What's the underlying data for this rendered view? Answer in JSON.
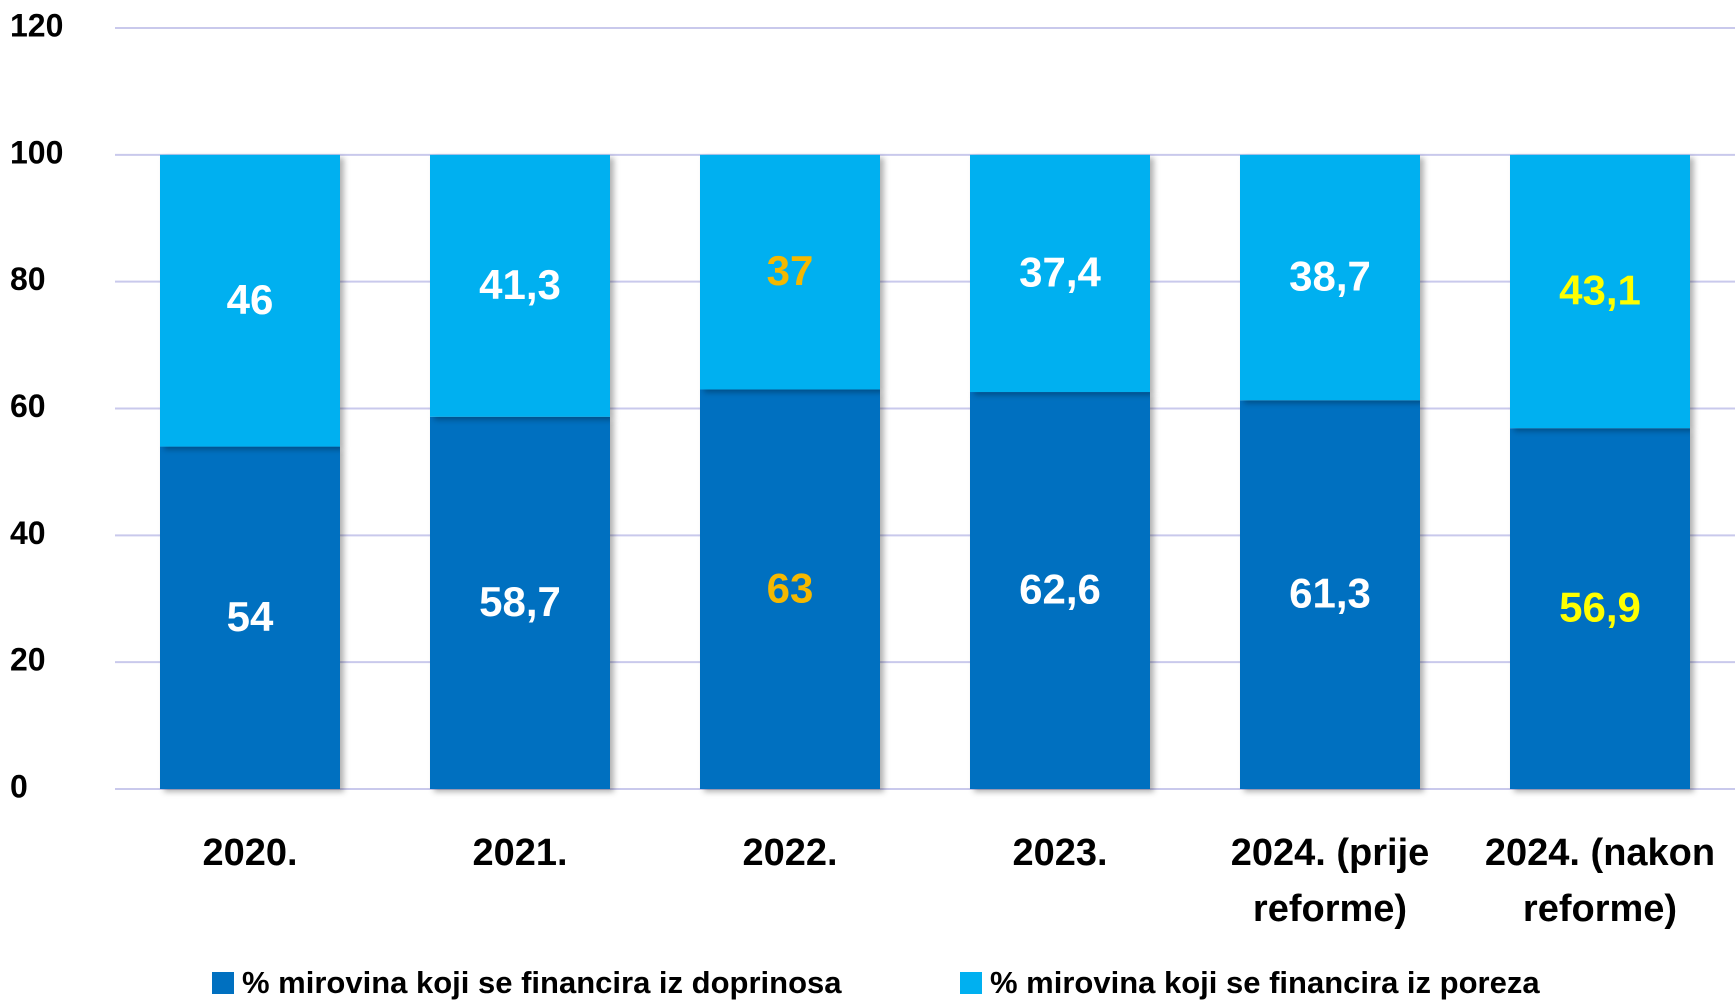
{
  "chart_data": {
    "type": "stacked_bar",
    "categories": [
      "2020.",
      "2021.",
      "2022.",
      "2023.",
      "2024. (prije reforme)",
      "2024. (nakon reforme)"
    ],
    "series": [
      {
        "name": "% mirovina koji se financira iz doprinosa",
        "color": "#0070c0",
        "values": [
          54,
          58.7,
          63,
          62.6,
          61.3,
          56.9
        ],
        "value_labels": [
          "54",
          "58,7",
          "63",
          "62,6",
          "61,3",
          "56,9"
        ],
        "label_colors": [
          "#ffffff",
          "#ffffff",
          "#f5b800",
          "#ffffff",
          "#ffffff",
          "#ffff00"
        ]
      },
      {
        "name": "% mirovina koji se financira iz poreza",
        "color": "#00b0f0",
        "values": [
          46,
          41.3,
          37,
          37.4,
          38.7,
          43.1
        ],
        "value_labels": [
          "46",
          "41,3",
          "37",
          "37,4",
          "38,7",
          "43,1"
        ],
        "label_colors": [
          "#ffffff",
          "#ffffff",
          "#f5b800",
          "#ffffff",
          "#ffffff",
          "#ffff00"
        ]
      }
    ],
    "ylim": [
      0,
      120
    ],
    "yticks": [
      0,
      20,
      40,
      60,
      80,
      100,
      120
    ],
    "grid": true,
    "legend": "bottom"
  }
}
